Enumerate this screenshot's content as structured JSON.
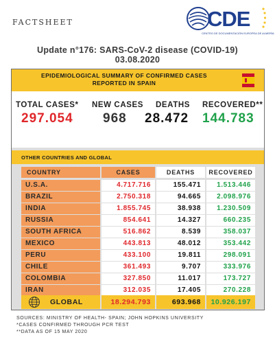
{
  "header": {
    "factsheet_label": "FACTSHEET",
    "logo_text": "CDE",
    "logo_subtitle": "CENTRO DE DOCUMENTACIÓN EUROPEA DE ALMERÍA"
  },
  "title": {
    "line1": "Update n°176: SARS-CoV-2 disease (COVID-19)",
    "line2": "03.08.2020"
  },
  "summary": {
    "heading_line1": "EPIDEMIOLOGICAL SUMMARY OF CONFIRMED CASES",
    "heading_line2": "REPORTED IN SPAIN",
    "flag_icon": "spain-flag-icon",
    "total_cases_label": "TOTAL CASES*",
    "total_cases_value": "297.054",
    "new_cases_label": "NEW CASES",
    "new_cases_value": "968",
    "deaths_label": "DEATHS",
    "deaths_value": "28.472",
    "recovered_label": "RECOVERED**",
    "recovered_value": "144.783"
  },
  "global_section": {
    "heading": "OTHER COUNTRIES AND GLOBAL",
    "columns": [
      "COUNTRY",
      "CASES",
      "DEATHS",
      "RECOVERED"
    ],
    "rows": [
      {
        "country": "U.S.A.",
        "cases": "4.717.716",
        "deaths": "155.471",
        "recovered": "1.513.446"
      },
      {
        "country": "BRAZIL",
        "cases": "2.750.318",
        "deaths": "94.665",
        "recovered": "2.098.976"
      },
      {
        "country": "INDIA",
        "cases": "1.855.745",
        "deaths": "38.938",
        "recovered": "1.230.509"
      },
      {
        "country": "RUSSIA",
        "cases": "854.641",
        "deaths": "14.327",
        "recovered": "660.235"
      },
      {
        "country": "SOUTH AFRICA",
        "cases": "516.862",
        "deaths": "8.539",
        "recovered": "358.037"
      },
      {
        "country": "MEXICO",
        "cases": "443.813",
        "deaths": "48.012",
        "recovered": "353.442"
      },
      {
        "country": "PERU",
        "cases": "433.100",
        "deaths": "19.811",
        "recovered": "298.091"
      },
      {
        "country": "CHILE",
        "cases": "361.493",
        "deaths": "9.707",
        "recovered": "333.976"
      },
      {
        "country": "COLOMBIA",
        "cases": "327.850",
        "deaths": "11.017",
        "recovered": "173.727"
      },
      {
        "country": "IRAN",
        "cases": "312.035",
        "deaths": "17.405",
        "recovered": "270.228"
      }
    ],
    "global": {
      "label": "GLOBAL",
      "cases": "18.294.793",
      "deaths": "693.968",
      "recovered": "10.926.197",
      "icon": "globe-icon"
    }
  },
  "notes": {
    "sources": "SOURCES: MINISTRY OF HEALTH- SPAIN; JOHN HOPKINS UNIVERSITY",
    "note1": "*CASES CONFIRMED THROUGH PCR TEST",
    "note2": "**DATA AS OF 15 MAY 2020"
  },
  "colors": {
    "accent_yellow": "#f7c42b",
    "orange": "#f39b5a",
    "cases_red": "#e0262a",
    "recovered_green": "#1fa14a",
    "logo_blue": "#1f3f8f"
  }
}
